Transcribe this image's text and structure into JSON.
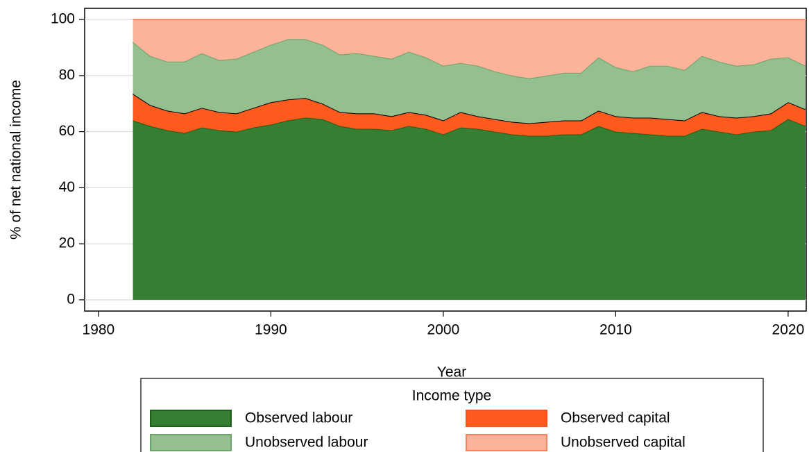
{
  "chart_data": {
    "type": "stacked_area",
    "x_label": "Year",
    "y_label": "% of net national income",
    "x": [
      1982,
      1983,
      1984,
      1985,
      1986,
      1987,
      1988,
      1989,
      1990,
      1991,
      1992,
      1993,
      1994,
      1995,
      1996,
      1997,
      1998,
      1999,
      2000,
      2001,
      2002,
      2003,
      2004,
      2005,
      2006,
      2007,
      2008,
      2009,
      2010,
      2011,
      2012,
      2013,
      2014,
      2015,
      2016,
      2017,
      2018,
      2019,
      2020,
      2021
    ],
    "series": [
      {
        "name": "Observed labour",
        "color": "#367e32",
        "edge": "#1f5e1c",
        "values": [
          64,
          62,
          60.5,
          59.5,
          61.5,
          60.5,
          60,
          61.5,
          62.5,
          64,
          65,
          64.5,
          62,
          61,
          61,
          60.5,
          62,
          61,
          59,
          61.5,
          61,
          60,
          59,
          58.5,
          58.5,
          59,
          59,
          62,
          60,
          59.5,
          59,
          58.5,
          58.5,
          61,
          60,
          59,
          60,
          60.5,
          64.5,
          62
        ]
      },
      {
        "name": "Observed capital",
        "color": "#fe5a1d",
        "edge": "#000000",
        "values": [
          9.5,
          7.5,
          7,
          7,
          7,
          6.5,
          6.5,
          7,
          8,
          7.5,
          7,
          5.5,
          5,
          5.5,
          5.5,
          5,
          5,
          5,
          5,
          5.5,
          4.5,
          4.5,
          4.5,
          4.5,
          5,
          5,
          5,
          5.5,
          5.5,
          5.5,
          6,
          6,
          5.5,
          6,
          5.5,
          6,
          5.5,
          6,
          6,
          6
        ]
      },
      {
        "name": "Unobserved labour",
        "color": "#94bf8f",
        "edge": "#6da368",
        "values": [
          18.5,
          17.5,
          17.5,
          18.5,
          19.5,
          18.5,
          19.5,
          20,
          20.5,
          21.5,
          21,
          21,
          20.5,
          21.5,
          20.5,
          20.5,
          21.5,
          20.5,
          19.5,
          17.5,
          18,
          17,
          16.5,
          16,
          16.5,
          17,
          17,
          19,
          17.5,
          16.5,
          18.5,
          19,
          18,
          20,
          19.5,
          18.5,
          18.5,
          19.5,
          16,
          15.5
        ]
      },
      {
        "name": "Unobserved capital",
        "color": "#fdb39a",
        "edge": "#f58360",
        "values": [
          8,
          13,
          15,
          15,
          12,
          14.5,
          14,
          11.5,
          9,
          7,
          7,
          9,
          12.5,
          12,
          13,
          14,
          11.5,
          13.5,
          16.5,
          15.5,
          16.5,
          18.5,
          20,
          21,
          20,
          19,
          19,
          13.5,
          17,
          18.5,
          16.5,
          16.5,
          18,
          13,
          15,
          16.5,
          16,
          14,
          13.5,
          16.5
        ]
      }
    ],
    "xlim": [
      1979.2,
      2021.05
    ],
    "xticks": [
      1980,
      1990,
      2000,
      2010,
      2020
    ],
    "ylim": [
      -4,
      104
    ],
    "yticks": [
      0,
      20,
      40,
      60,
      80,
      100
    ],
    "grid": true,
    "legend_title": "Income type",
    "legend_position": "bottom"
  }
}
